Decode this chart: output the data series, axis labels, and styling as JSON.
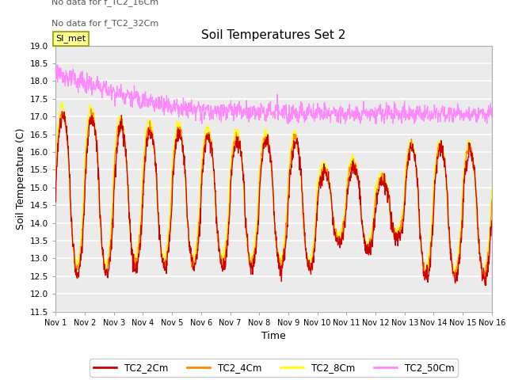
{
  "title": "Soil Temperatures Set 2",
  "xlabel": "Time",
  "ylabel": "Soil Temperature (C)",
  "ylim": [
    11.5,
    19.0
  ],
  "yticks": [
    11.5,
    12.0,
    12.5,
    13.0,
    13.5,
    14.0,
    14.5,
    15.0,
    15.5,
    16.0,
    16.5,
    17.0,
    17.5,
    18.0,
    18.5,
    19.0
  ],
  "xtick_labels": [
    "Nov 1",
    "Nov 2",
    "Nov 3",
    "Nov 4",
    "Nov 5",
    "Nov 6",
    "Nov 7",
    "Nov 8",
    "Nov 9",
    "Nov 10",
    "Nov 11",
    "Nov 12",
    "Nov 13",
    "Nov 14",
    "Nov 15",
    "Nov 16"
  ],
  "no_data_text": [
    "No data for f_TC2_16Cm",
    "No data for f_TC2_32Cm"
  ],
  "legend_labels": [
    "TC2_2Cm",
    "TC2_4Cm",
    "TC2_8Cm",
    "TC2_50Cm"
  ],
  "colors": {
    "TC2_2Cm": "#cc0000",
    "TC2_4Cm": "#ff8800",
    "TC2_8Cm": "#ffff00",
    "TC2_50Cm": "#ff88ff"
  },
  "SI_met_box_color": "#ffff99",
  "SI_met_border_color": "#999900",
  "plot_bg_color": "#ebebeb",
  "fig_size": [
    6.4,
    4.8
  ],
  "dpi": 100
}
